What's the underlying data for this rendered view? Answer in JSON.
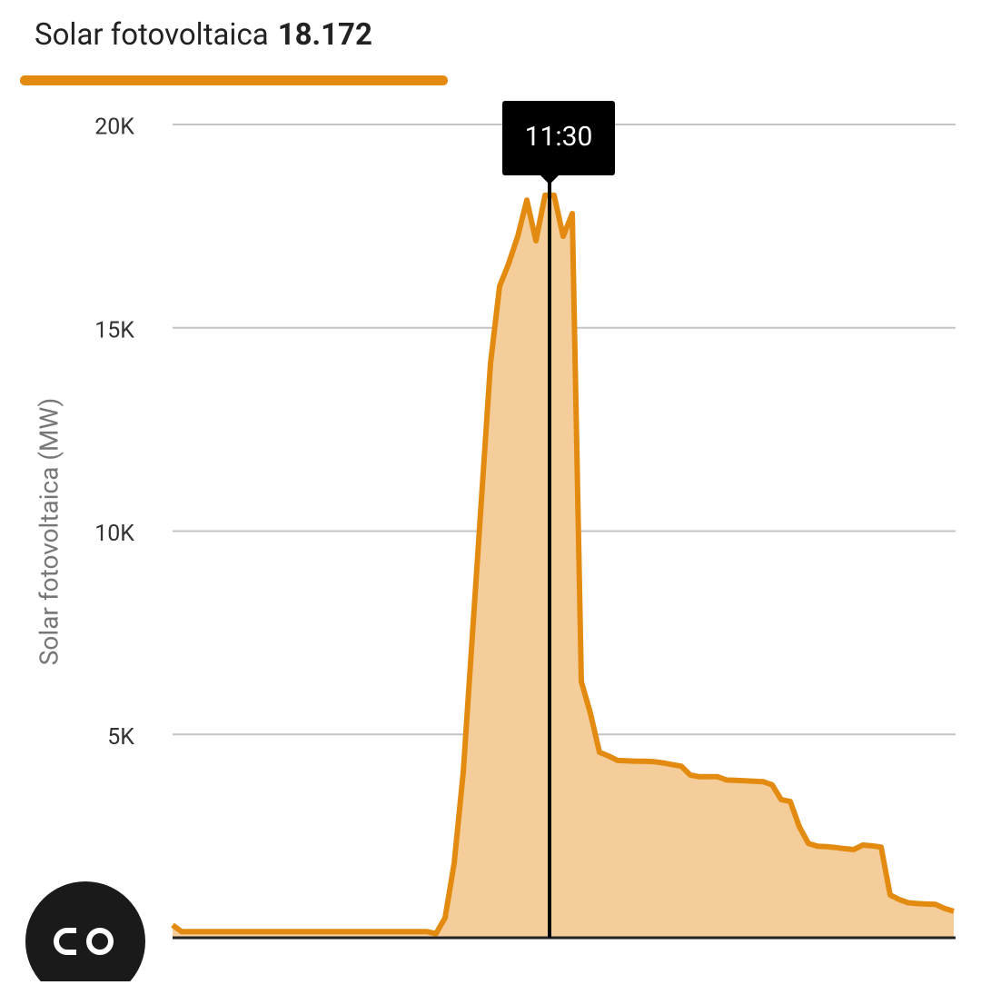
{
  "header": {
    "label": "Solar fotovoltaica",
    "value": "18.172"
  },
  "tooltip": "11:30",
  "chart_data": {
    "type": "area",
    "y_label": "Solar fotovoltaica (MW)",
    "color": "#e38b10",
    "fill": "#f5cd9a",
    "ylim": [
      0,
      20000
    ],
    "yticks": [
      {
        "value": 5000,
        "label": "5K"
      },
      {
        "value": 10000,
        "label": "10K"
      },
      {
        "value": 15000,
        "label": "15K"
      },
      {
        "value": 20000,
        "label": "20K"
      }
    ],
    "grid": true,
    "values": [
      310,
      150,
      150,
      150,
      150,
      150,
      150,
      150,
      150,
      150,
      150,
      150,
      150,
      150,
      150,
      150,
      150,
      150,
      150,
      150,
      150,
      150,
      150,
      150,
      150,
      150,
      150,
      150,
      150,
      100,
      490,
      1830,
      4070,
      7420,
      10770,
      14120,
      16020,
      16580,
      17250,
      18140,
      17140,
      18260,
      18260,
      17250,
      17810,
      6300,
      5520,
      4560,
      4470,
      4360,
      4350,
      4340,
      4340,
      4330,
      4300,
      4260,
      4220,
      4000,
      3960,
      3960,
      3960,
      3880,
      3870,
      3860,
      3850,
      3840,
      3760,
      3400,
      3350,
      2730,
      2320,
      2250,
      2240,
      2220,
      2190,
      2170,
      2280,
      2260,
      2230,
      1050,
      940,
      860,
      840,
      830,
      820,
      720,
      650
    ]
  }
}
